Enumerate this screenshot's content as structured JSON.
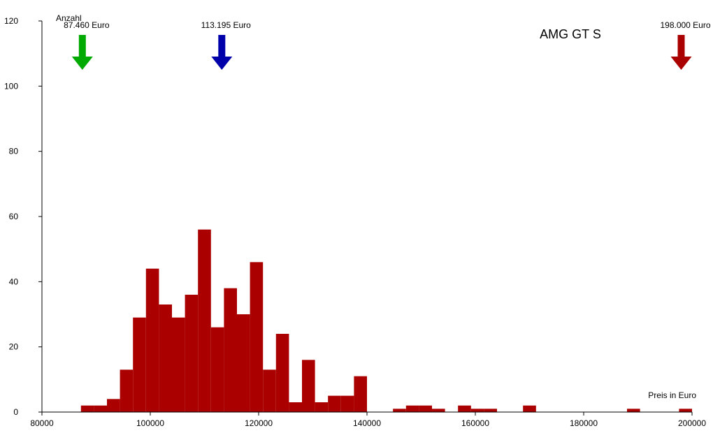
{
  "chart_data": {
    "type": "bar",
    "title": "AMG GT S",
    "xlabel": "Preis in Euro",
    "ylabel": "Anzahl",
    "xlim": [
      80000,
      200000
    ],
    "ylim": [
      0,
      120
    ],
    "x_ticks": [
      "80000",
      "100000",
      "120000",
      "140000",
      "160000",
      "180000",
      "200000"
    ],
    "y_ticks": [
      "0",
      "20",
      "40",
      "60",
      "80",
      "100",
      "120"
    ],
    "bar_color": "#aa0000",
    "bin_width": 2400,
    "bins": [
      {
        "start": 87200,
        "value": 2
      },
      {
        "start": 89600,
        "value": 2
      },
      {
        "start": 92000,
        "value": 4
      },
      {
        "start": 94400,
        "value": 13
      },
      {
        "start": 96800,
        "value": 29
      },
      {
        "start": 99200,
        "value": 44
      },
      {
        "start": 101600,
        "value": 33
      },
      {
        "start": 104000,
        "value": 29
      },
      {
        "start": 106400,
        "value": 36
      },
      {
        "start": 108800,
        "value": 56
      },
      {
        "start": 111200,
        "value": 26
      },
      {
        "start": 113600,
        "value": 38
      },
      {
        "start": 116000,
        "value": 30
      },
      {
        "start": 118400,
        "value": 46
      },
      {
        "start": 120800,
        "value": 13
      },
      {
        "start": 123200,
        "value": 24
      },
      {
        "start": 125600,
        "value": 3
      },
      {
        "start": 128000,
        "value": 16
      },
      {
        "start": 130400,
        "value": 3
      },
      {
        "start": 132800,
        "value": 5
      },
      {
        "start": 135200,
        "value": 5
      },
      {
        "start": 137600,
        "value": 11
      },
      {
        "start": 144800,
        "value": 1
      },
      {
        "start": 147200,
        "value": 2
      },
      {
        "start": 149600,
        "value": 2
      },
      {
        "start": 152000,
        "value": 1
      },
      {
        "start": 156800,
        "value": 2
      },
      {
        "start": 159200,
        "value": 1
      },
      {
        "start": 161600,
        "value": 1
      },
      {
        "start": 168800,
        "value": 2
      },
      {
        "start": 188000,
        "value": 1
      },
      {
        "start": 197600,
        "value": 1
      }
    ],
    "markers": [
      {
        "name": "min",
        "x": 87460,
        "label": "87.460 Euro",
        "color": "#00aa00"
      },
      {
        "name": "average",
        "x": 113195,
        "label": "113.195 Euro",
        "color": "#0000aa"
      },
      {
        "name": "max",
        "x": 198000,
        "label": "198.000 Euro",
        "color": "#aa0000"
      }
    ]
  }
}
